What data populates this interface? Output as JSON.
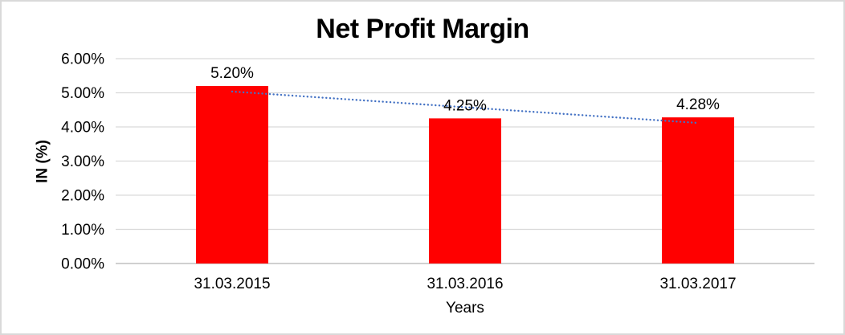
{
  "chart_data": {
    "type": "bar",
    "title": "Net Profit Margin",
    "xlabel": "Years",
    "ylabel": "IN (%)",
    "categories": [
      "31.03.2015",
      "31.03.2016",
      "31.03.2017"
    ],
    "series": [
      {
        "name": "Net Profit Margin",
        "values": [
          5.2,
          4.25,
          4.28
        ]
      }
    ],
    "data_labels": [
      "5.20%",
      "4.25%",
      "4.28%"
    ],
    "trendline": {
      "type": "linear",
      "style": "dotted",
      "values": [
        5.0367,
        4.5767,
        4.1167
      ]
    },
    "ylim": [
      0,
      6
    ],
    "ytick_step": 1,
    "ytick_labels": [
      "0.00%",
      "1.00%",
      "2.00%",
      "3.00%",
      "4.00%",
      "5.00%",
      "6.00%"
    ],
    "grid": true,
    "legend_position": "none",
    "colors": {
      "bar": "#ff0000",
      "trendline": "#4472c4",
      "gridline": "#d9d9d9",
      "axis_line": "#d0d0d0",
      "text": "#000000",
      "border": "#d9d9d9",
      "background": "#ffffff"
    }
  }
}
